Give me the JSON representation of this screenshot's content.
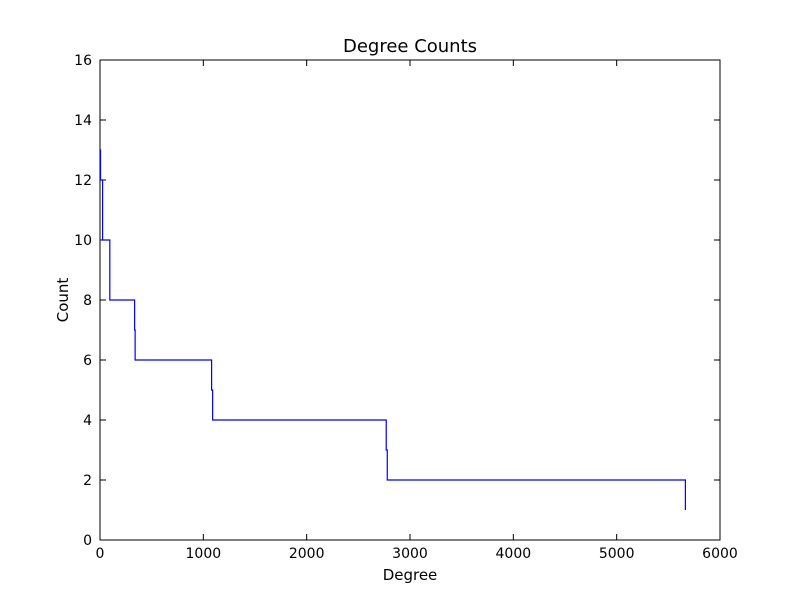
{
  "chart_data": {
    "type": "line",
    "title": "Degree Counts",
    "xlabel": "Degree",
    "ylabel": "Count",
    "xlim": [
      0,
      6000
    ],
    "ylim": [
      0,
      16
    ],
    "xticks": [
      0,
      1000,
      2000,
      3000,
      4000,
      5000,
      6000
    ],
    "yticks": [
      0,
      2,
      4,
      6,
      8,
      10,
      12,
      14,
      16
    ],
    "grid": false,
    "line_color": "#0000ff",
    "series": [
      {
        "x": [
          0,
          5,
          15,
          25,
          90,
          95,
          330,
          335,
          340,
          1070,
          1080,
          1090,
          2750,
          2770,
          2780,
          5660,
          5665
        ],
        "y": [
          13,
          12,
          12,
          10,
          10,
          8,
          8,
          7,
          6,
          6,
          5,
          4,
          4,
          3,
          2,
          2,
          1
        ]
      }
    ]
  }
}
